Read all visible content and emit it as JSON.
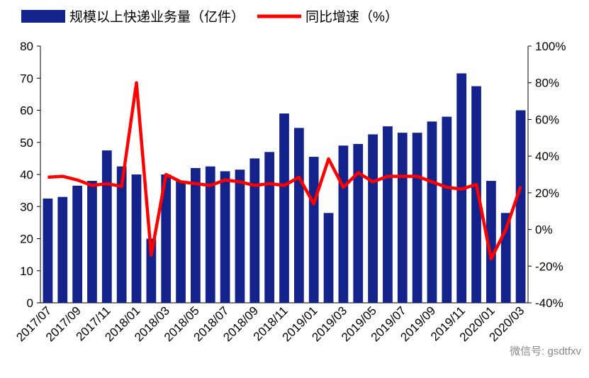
{
  "chart_data": {
    "type": "bar_line",
    "categories": [
      "2017/07",
      null,
      "2017/09",
      null,
      "2017/11",
      null,
      "2018/01",
      null,
      "2018/03",
      null,
      "2018/05",
      null,
      "2018/07",
      null,
      "2018/09",
      null,
      "2018/11",
      null,
      "2019/01",
      null,
      "2019/03",
      null,
      "2019/05",
      null,
      "2019/07",
      null,
      "2019/09",
      null,
      "2019/11",
      null,
      "2020/01",
      null,
      "2020/03"
    ],
    "series": [
      {
        "name": "规模以上快递业务量（亿件）",
        "color": "#14238c",
        "type": "bar",
        "values": [
          32.5,
          33,
          36.5,
          38,
          47.5,
          42.5,
          40,
          20,
          40,
          38,
          42,
          42.5,
          41,
          41.5,
          45,
          47,
          59,
          54.5,
          45.5,
          28,
          49,
          49.5,
          52.5,
          55,
          53,
          53,
          56.5,
          58,
          71.5,
          67.5,
          38,
          28,
          60
        ]
      },
      {
        "name": "同比增速（%）",
        "color": "#ff0000",
        "type": "line",
        "axis": "y2",
        "values": [
          28.5,
          29,
          27,
          24,
          25,
          23.5,
          80,
          -14,
          30,
          26,
          25,
          24,
          27,
          26,
          24,
          25,
          24,
          28.5,
          14,
          38.5,
          23,
          31,
          26,
          29,
          29,
          29,
          26,
          23,
          22,
          24.6,
          -16,
          0,
          23.5
        ]
      }
    ],
    "ylim": [
      0,
      80
    ],
    "yticks": [
      0,
      10,
      20,
      30,
      40,
      50,
      60,
      70,
      80
    ],
    "y2lim": [
      -40,
      100
    ],
    "y2ticks": [
      {
        "value": -40,
        "label": "-40%"
      },
      {
        "value": -20,
        "label": "-20%"
      },
      {
        "value": 0,
        "label": "0%"
      },
      {
        "value": 20,
        "label": "20%"
      },
      {
        "value": 40,
        "label": "40%"
      },
      {
        "value": 60,
        "label": "60%"
      },
      {
        "value": 80,
        "label": "80%"
      },
      {
        "value": 100,
        "label": "100%"
      }
    ],
    "watermark": "微信号: gsdtfxv"
  }
}
